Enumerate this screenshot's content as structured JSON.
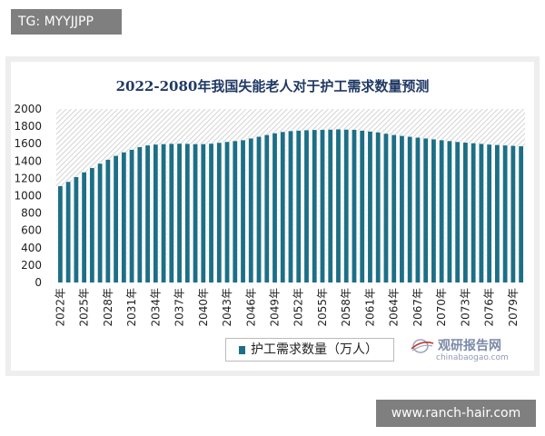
{
  "top_tag": "TG: MYYJJPP",
  "bottom_tag": "www.ranch-hair.com",
  "watermark": {
    "cn": "观研报告网",
    "en": "chinabaogao.com",
    "icon": "globe-logo-icon"
  },
  "colors": {
    "bar": "#1d6f86",
    "hatch": "#c9c9c9",
    "title": "#1f3864"
  },
  "chart_data": {
    "type": "bar",
    "title": "2022-2080年我国失能老人对于护工需求数量预测",
    "xlabel": "",
    "ylabel": "",
    "ylim": [
      0,
      2000
    ],
    "yticks": [
      "0",
      "200",
      "400",
      "600",
      "800",
      "1000",
      "1200",
      "1400",
      "1600",
      "1800",
      "2000"
    ],
    "grid": false,
    "legend_position": "bottom",
    "categories": [
      "2022年",
      "2023年",
      "2024年",
      "2025年",
      "2026年",
      "2027年",
      "2028年",
      "2029年",
      "2030年",
      "2031年",
      "2032年",
      "2033年",
      "2034年",
      "2035年",
      "2036年",
      "2037年",
      "2038年",
      "2039年",
      "2040年",
      "2041年",
      "2042年",
      "2043年",
      "2044年",
      "2045年",
      "2046年",
      "2047年",
      "2048年",
      "2049年",
      "2050年",
      "2051年",
      "2052年",
      "2053年",
      "2054年",
      "2055年",
      "2056年",
      "2057年",
      "2058年",
      "2059年",
      "2060年",
      "2061年",
      "2062年",
      "2063年",
      "2064年",
      "2065年",
      "2066年",
      "2067年",
      "2068年",
      "2069年",
      "2070年",
      "2071年",
      "2072年",
      "2073年",
      "2074年",
      "2075年",
      "2076年",
      "2077年",
      "2078年",
      "2079年",
      "2080年"
    ],
    "shown_tick_labels": [
      "2022年",
      "2025年",
      "2028年",
      "2031年",
      "2034年",
      "2037年",
      "2040年",
      "2043年",
      "2046年",
      "2049年",
      "2052年",
      "2055年",
      "2058年",
      "2061年",
      "2064年",
      "2067年",
      "2070年",
      "2073年",
      "2076年",
      "2079年"
    ],
    "series": [
      {
        "name": "护工需求数量（万人）",
        "values": [
          1110,
          1160,
          1215,
          1270,
          1320,
          1370,
          1415,
          1460,
          1500,
          1530,
          1560,
          1580,
          1590,
          1595,
          1598,
          1600,
          1598,
          1595,
          1595,
          1600,
          1610,
          1620,
          1630,
          1640,
          1660,
          1680,
          1700,
          1720,
          1735,
          1745,
          1750,
          1755,
          1758,
          1760,
          1762,
          1765,
          1762,
          1760,
          1750,
          1740,
          1730,
          1715,
          1700,
          1690,
          1680,
          1670,
          1660,
          1650,
          1640,
          1630,
          1620,
          1612,
          1605,
          1598,
          1590,
          1585,
          1580,
          1575,
          1570
        ]
      }
    ]
  }
}
